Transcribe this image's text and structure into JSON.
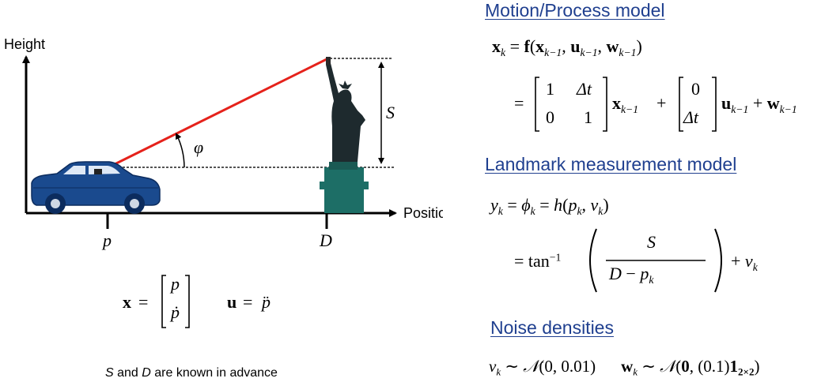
{
  "diagram": {
    "height_label": "Height",
    "position_label": "Position",
    "p_label": "p",
    "d_label": "D",
    "s_label": "S",
    "phi_label": "φ",
    "colors": {
      "sight_line": "#e5221b",
      "car_body": "#1a4a8e",
      "statue": "#1d6e66",
      "axes": "#000000"
    }
  },
  "state_eq": {
    "x_lhs": "x",
    "equals": "=",
    "vec_top": "p",
    "vec_bottom": "ṗ",
    "u_lhs": "u",
    "u_rhs": "p̈"
  },
  "footnote": {
    "s": "S",
    "and": " and ",
    "d": "D",
    "rest": " are known in advance"
  },
  "motion": {
    "heading": "Motion/Process model",
    "row1": {
      "x": "x",
      "k": "k",
      "eq": "=",
      "f": "f",
      "open": "(",
      "x2": "x",
      "km1": "k−1",
      "comma": ", ",
      "u": "u",
      "km1b": "k−1",
      "comma2": ", ",
      "w": "w",
      "km1c": "k−1",
      "close": ")"
    },
    "row2": {
      "eq": "=",
      "m11": "1",
      "m12": "Δt",
      "m21": "0",
      "m22": "1",
      "x": "x",
      "km1": "k−1",
      "plus": "+",
      "b1": "0",
      "b2": "Δt",
      "u": "u",
      "km1b": "k−1",
      "plus2": " + ",
      "w": "w",
      "km1c": "k−1"
    }
  },
  "landmark": {
    "heading": "Landmark measurement model",
    "row1": {
      "y": "y",
      "k": "k",
      "eq1": " = ",
      "phi": "ϕ",
      "k2": "k",
      "eq2": " = ",
      "h": "h",
      "open": "(",
      "p": "p",
      "k3": "k",
      "comma": ", ",
      "v": "v",
      "k4": "k",
      "close": ")"
    },
    "row2": {
      "eq": "= tan",
      "inv": "−1",
      "num": "S",
      "den_d": "D",
      "den_minus": " − ",
      "den_p": "p",
      "den_k": "k",
      "plus": "+ ",
      "v": "v",
      "k": "k"
    }
  },
  "noise": {
    "heading": "Noise densities",
    "v": "v",
    "k": "k",
    "sim1": " ∼ ",
    "n1": "𝒩",
    "args1": "(0, 0.01)",
    "w": "w",
    "k2": "k",
    "sim2": " ∼ ",
    "n2": "𝒩",
    "args2_open": "(",
    "zero": "0",
    "args2_mid": ", (0.1)",
    "one": "1",
    "sub2": "2×2",
    "args2_close": ")"
  }
}
